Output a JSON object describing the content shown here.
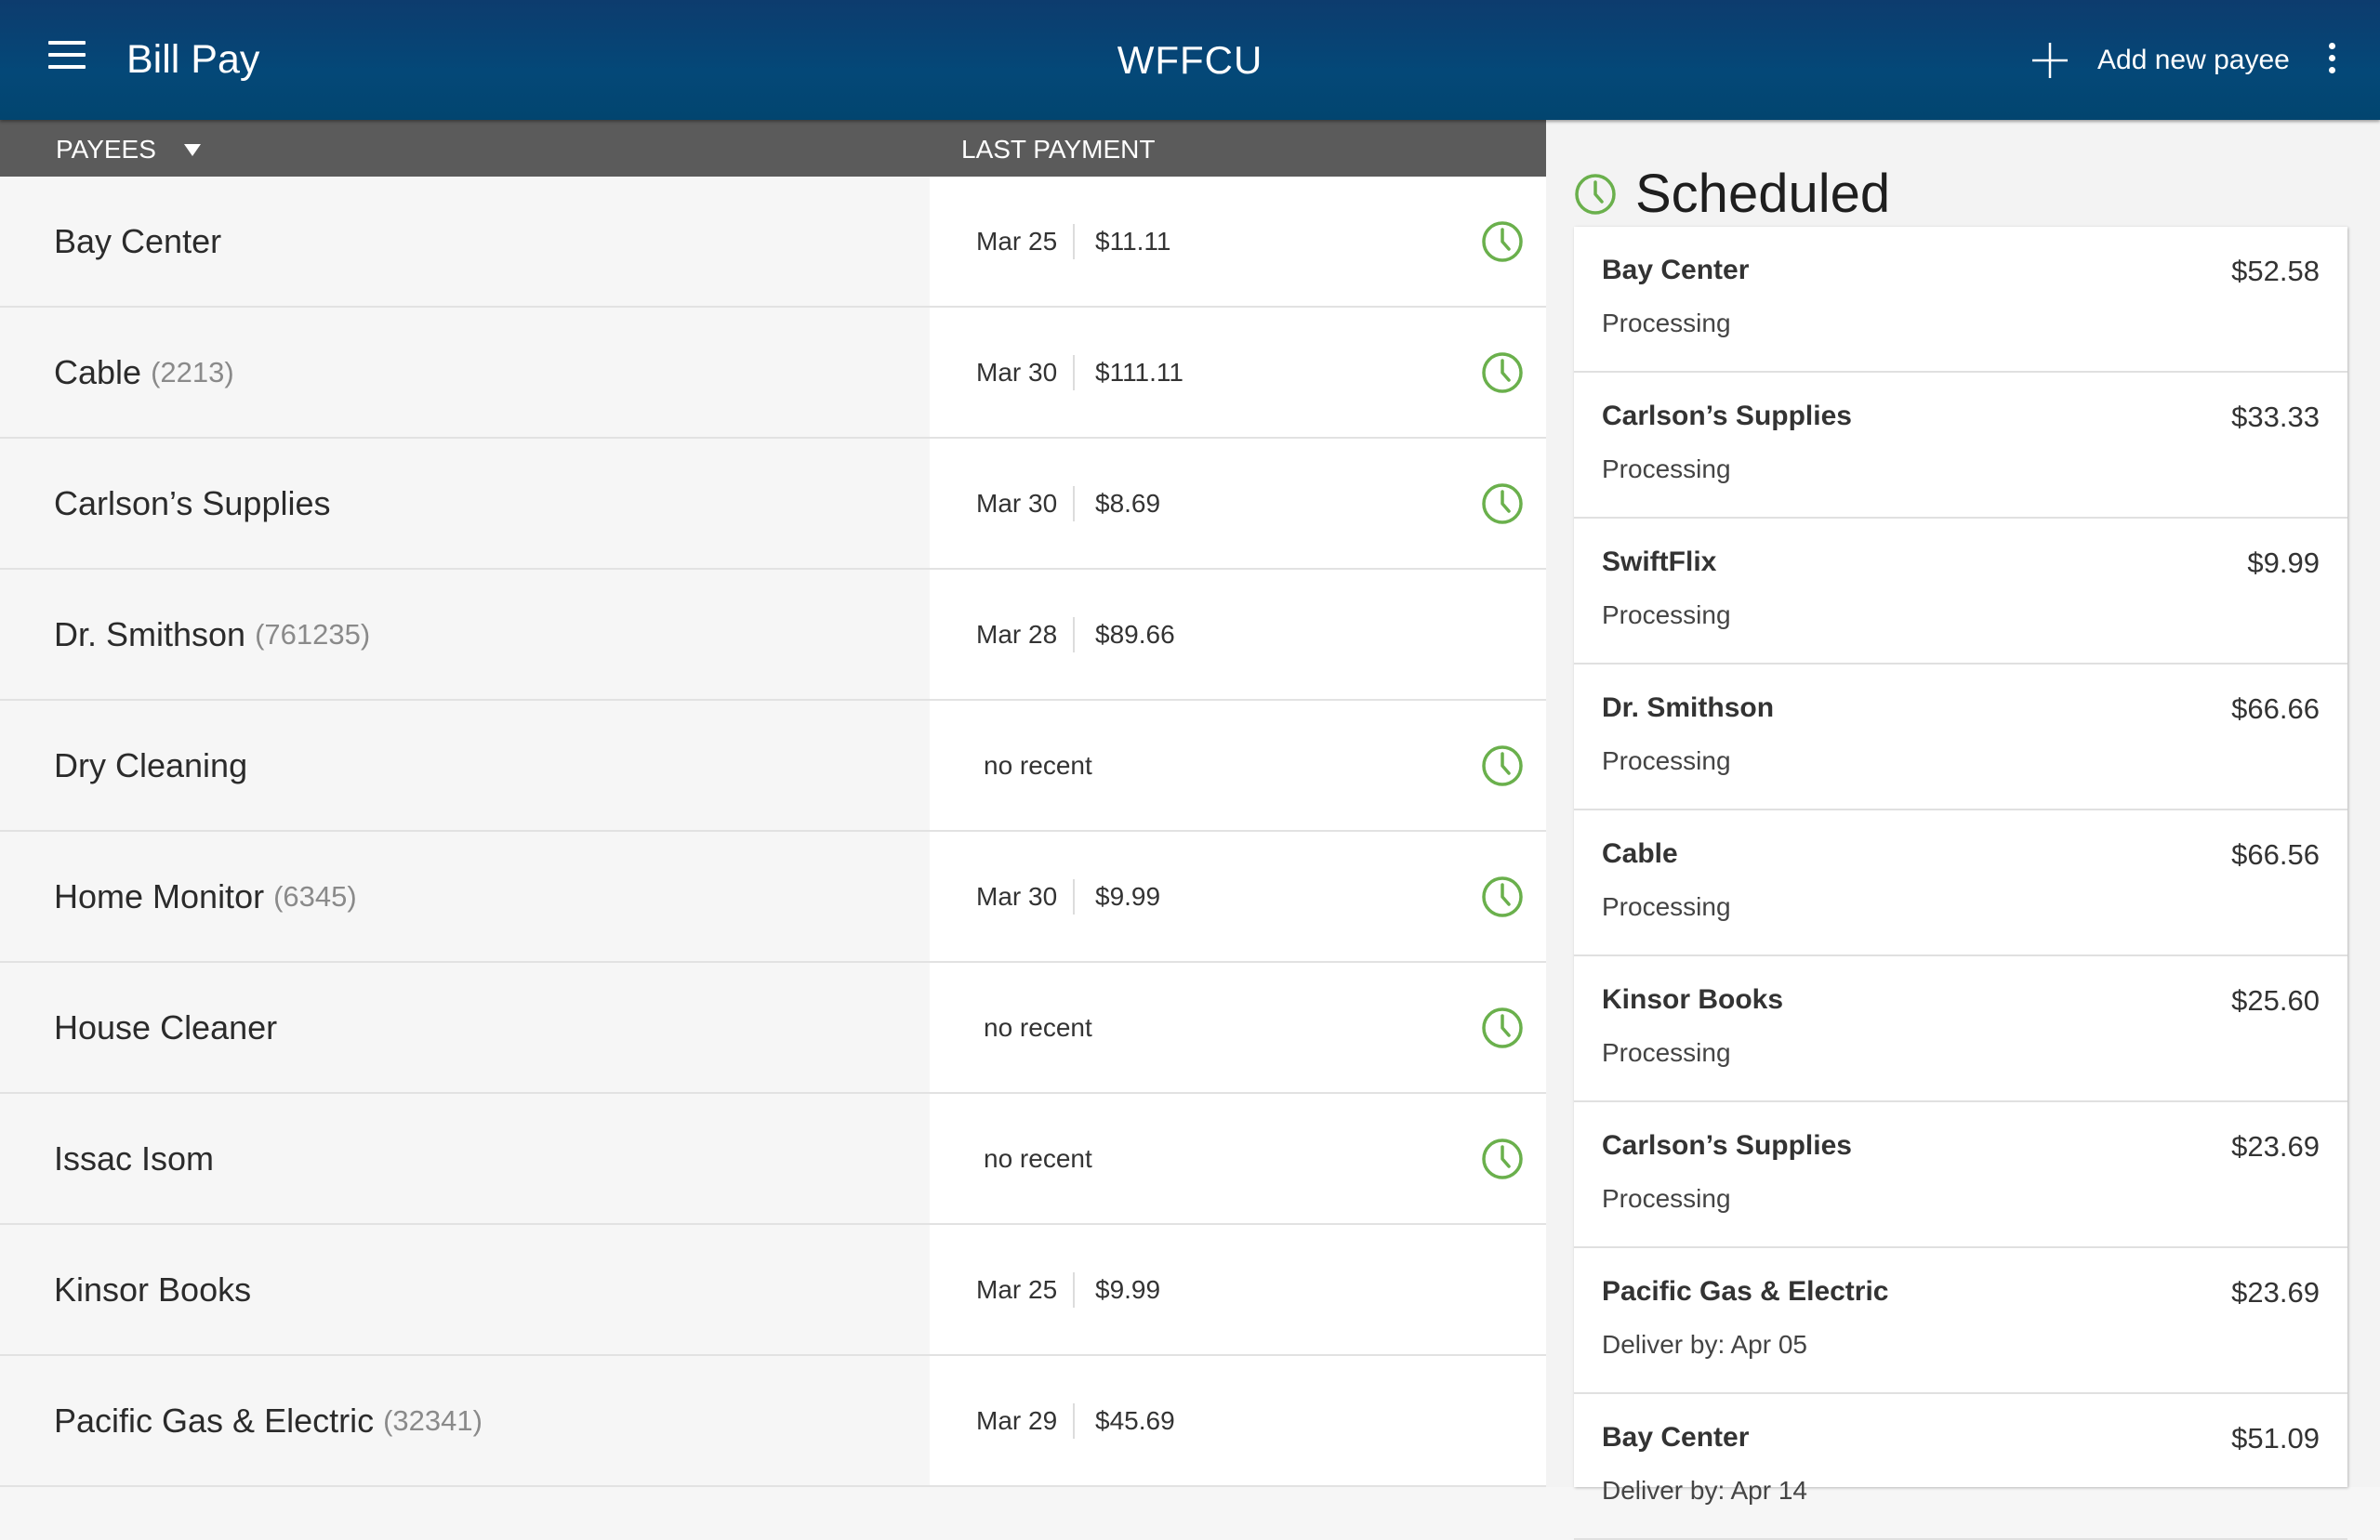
{
  "app_bar": {
    "title": "Bill Pay",
    "center_title": "WFFCU",
    "add_payee_label": "Add new payee"
  },
  "list_header": {
    "payees_label": "PAYEES",
    "last_payment_label": "LAST PAYMENT"
  },
  "payees": [
    {
      "name": "Bay Center",
      "account": "",
      "date": "Mar 25",
      "amount": "$11.11",
      "none": "",
      "scheduled": true
    },
    {
      "name": "Cable",
      "account": "(2213)",
      "date": "Mar 30",
      "amount": "$111.11",
      "none": "",
      "scheduled": true
    },
    {
      "name": "Carlson’s Supplies",
      "account": "",
      "date": "Mar 30",
      "amount": "$8.69",
      "none": "",
      "scheduled": true
    },
    {
      "name": "Dr. Smithson",
      "account": "(761235)",
      "date": "Mar 28",
      "amount": "$89.66",
      "none": "",
      "scheduled": false
    },
    {
      "name": "Dry Cleaning",
      "account": "",
      "date": "",
      "amount": "",
      "none": "no recent",
      "scheduled": true
    },
    {
      "name": "Home Monitor",
      "account": "(6345)",
      "date": "Mar 30",
      "amount": "$9.99",
      "none": "",
      "scheduled": true
    },
    {
      "name": "House Cleaner",
      "account": "",
      "date": "",
      "amount": "",
      "none": "no recent",
      "scheduled": true
    },
    {
      "name": "Issac Isom",
      "account": "",
      "date": "",
      "amount": "",
      "none": "no recent",
      "scheduled": true
    },
    {
      "name": "Kinsor Books",
      "account": "",
      "date": "Mar 25",
      "amount": "$9.99",
      "none": "",
      "scheduled": false
    },
    {
      "name": "Pacific Gas & Electric",
      "account": "(32341)",
      "date": "Mar 29",
      "amount": "$45.69",
      "none": "",
      "scheduled": false
    }
  ],
  "scheduled": {
    "title": "Scheduled",
    "items": [
      {
        "name": "Bay Center",
        "amount": "$52.58",
        "status": "Processing"
      },
      {
        "name": "Carlson’s Supplies",
        "amount": "$33.33",
        "status": "Processing"
      },
      {
        "name": "SwiftFlix",
        "amount": "$9.99",
        "status": "Processing"
      },
      {
        "name": "Dr. Smithson",
        "amount": "$66.66",
        "status": "Processing"
      },
      {
        "name": "Cable",
        "amount": "$66.56",
        "status": "Processing"
      },
      {
        "name": "Kinsor Books",
        "amount": "$25.60",
        "status": "Processing"
      },
      {
        "name": "Carlson’s Supplies",
        "amount": "$23.69",
        "status": "Processing"
      },
      {
        "name": "Pacific Gas & Electric",
        "amount": "$23.69",
        "status": "Deliver by: Apr 05"
      },
      {
        "name": "Bay Center",
        "amount": "$51.09",
        "status": "Deliver by: Apr 14"
      }
    ]
  },
  "icons": {
    "menu": "hamburger-menu-icon",
    "add": "plus-icon",
    "overflow": "more-vert-icon",
    "scheduled": "clock-icon"
  },
  "colors": {
    "app_bar": "#044878",
    "list_header": "#5b5b5b",
    "accent_green": "#6ab04c"
  }
}
